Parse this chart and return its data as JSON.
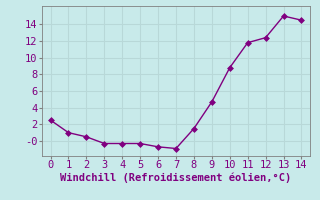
{
  "x": [
    0,
    1,
    2,
    3,
    4,
    5,
    6,
    7,
    8,
    9,
    10,
    11,
    12,
    13,
    14
  ],
  "y": [
    2.5,
    1.0,
    0.5,
    -0.3,
    -0.3,
    -0.3,
    -0.7,
    -0.9,
    1.5,
    4.7,
    8.8,
    11.8,
    12.4,
    15.0,
    14.5
  ],
  "line_color": "#800080",
  "marker_color": "#800080",
  "background_color": "#c8eaea",
  "grid_color": "#b8d8d8",
  "xlabel": "Windchill (Refroidissement éolien,°C)",
  "xlabel_color": "#800080",
  "tick_color": "#800080",
  "spine_color": "#808080",
  "xlim": [
    -0.5,
    14.5
  ],
  "ylim": [
    -1.8,
    16.2
  ],
  "xticks": [
    0,
    1,
    2,
    3,
    4,
    5,
    6,
    7,
    8,
    9,
    10,
    11,
    12,
    13,
    14
  ],
  "yticks": [
    0,
    2,
    4,
    6,
    8,
    10,
    12,
    14
  ],
  "ytick_labels": [
    "-0",
    "2",
    "4",
    "6",
    "8",
    "10",
    "12",
    "14"
  ],
  "marker_size": 3,
  "line_width": 1.0,
  "font_size": 7.5
}
